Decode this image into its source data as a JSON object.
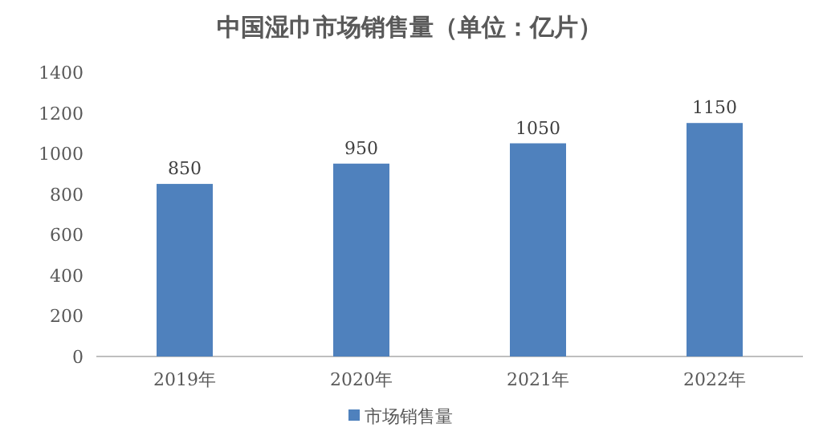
{
  "chart_data": {
    "type": "bar",
    "title": "中国湿巾市场销售量（单位：亿片）",
    "categories": [
      "2019年",
      "2020年",
      "2021年",
      "2022年"
    ],
    "series": [
      {
        "name": "市场销售量",
        "color": "#4f81bd",
        "values": [
          850,
          950,
          1050,
          1150
        ]
      }
    ],
    "ylim": [
      0,
      1400
    ],
    "yticks": [
      0,
      200,
      400,
      600,
      800,
      1000,
      1200,
      1400
    ],
    "data_labels": true,
    "legend": "bottom",
    "grid": false
  }
}
